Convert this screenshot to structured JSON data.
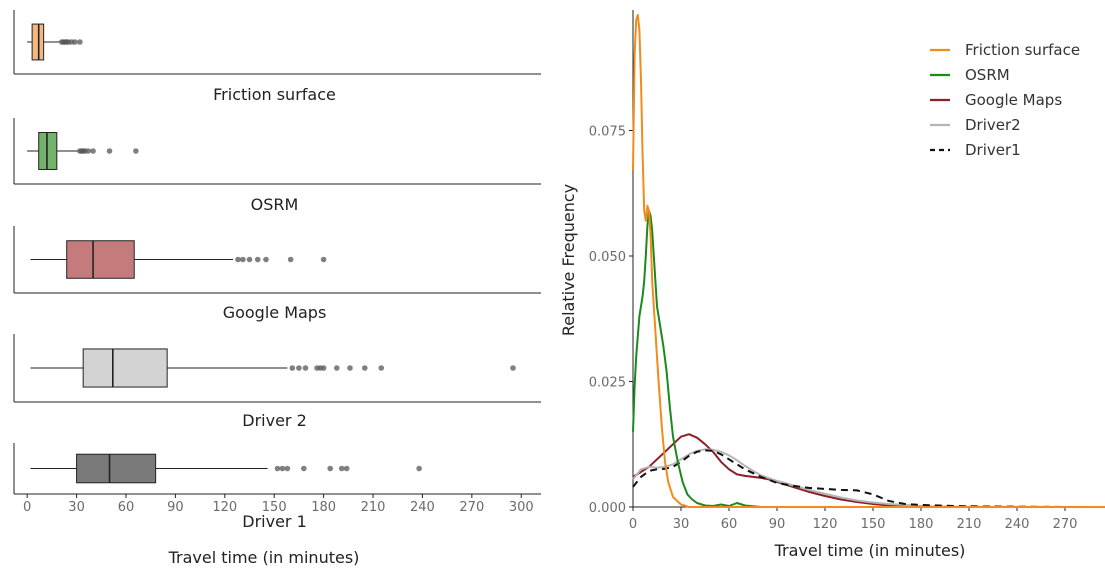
{
  "chart_data": [
    {
      "type": "boxplot",
      "xlabel": "Travel time (in minutes)",
      "xlim": [
        -8,
        312
      ],
      "x_ticks": [
        0,
        30,
        60,
        90,
        120,
        150,
        180,
        210,
        240,
        270,
        300
      ],
      "series": [
        {
          "name": "Friction surface",
          "color": "#f3b882",
          "whisker_low": 0,
          "q1": 3,
          "median": 7,
          "q3": 10,
          "whisker_high": 20,
          "outliers": [
            21,
            22,
            23,
            24,
            25,
            27,
            29,
            32
          ]
        },
        {
          "name": "OSRM",
          "color": "#73b36b",
          "whisker_low": 0,
          "q1": 7,
          "median": 12,
          "q3": 18,
          "whisker_high": 31,
          "outliers": [
            32,
            33,
            34,
            35,
            37,
            40,
            50,
            66
          ]
        },
        {
          "name": "Google Maps",
          "color": "#c57b7b",
          "whisker_low": 2,
          "q1": 24,
          "median": 40,
          "q3": 65,
          "whisker_high": 125,
          "outliers": [
            128,
            131,
            135,
            140,
            145,
            160,
            180
          ]
        },
        {
          "name": "Driver 2",
          "color": "#d3d3d3",
          "whisker_low": 2,
          "q1": 34,
          "median": 52,
          "q3": 85,
          "whisker_high": 158,
          "outliers": [
            161,
            165,
            169,
            176,
            178,
            180,
            188,
            196,
            205,
            215,
            295
          ]
        },
        {
          "name": "Driver 1",
          "color": "#7a7a7a",
          "whisker_low": 2,
          "q1": 30,
          "median": 50,
          "q3": 78,
          "whisker_high": 146,
          "outliers": [
            152,
            155,
            158,
            168,
            184,
            191,
            194,
            238
          ]
        }
      ]
    },
    {
      "type": "line",
      "xlabel": "Travel time (in minutes)",
      "ylabel": "Relative Frequency",
      "xlim": [
        0,
        295
      ],
      "ylim": [
        0,
        0.099
      ],
      "x_ticks": [
        0,
        30,
        60,
        90,
        120,
        150,
        180,
        210,
        240,
        270
      ],
      "y_ticks": [
        0.0,
        0.025,
        0.05,
        0.075
      ],
      "y_tick_labels": [
        "0.000",
        "0.025",
        "0.050",
        "0.075"
      ],
      "legend": "top-right",
      "series": [
        {
          "name": "Friction surface",
          "color": "#f28a1c",
          "dash": "solid",
          "x": [
            0,
            1,
            2,
            3,
            4,
            5,
            6,
            7,
            8,
            9,
            10,
            11,
            12,
            14,
            16,
            18,
            20,
            22,
            25,
            30,
            35,
            295
          ],
          "y": [
            0.067,
            0.09,
            0.097,
            0.098,
            0.095,
            0.085,
            0.07,
            0.059,
            0.057,
            0.06,
            0.059,
            0.054,
            0.045,
            0.035,
            0.025,
            0.016,
            0.009,
            0.005,
            0.002,
            0.0005,
            0.0,
            0.0
          ]
        },
        {
          "name": "OSRM",
          "color": "#1a8a1a",
          "dash": "solid",
          "x": [
            0,
            1,
            2,
            3,
            4,
            5,
            6,
            7,
            8,
            9,
            10,
            11,
            12,
            13,
            14,
            15,
            17,
            19,
            21,
            23,
            25,
            28,
            31,
            34,
            37,
            40,
            45,
            50,
            55,
            60,
            65,
            70,
            80,
            295
          ],
          "y": [
            0.015,
            0.024,
            0.03,
            0.034,
            0.038,
            0.04,
            0.042,
            0.045,
            0.05,
            0.056,
            0.059,
            0.058,
            0.055,
            0.05,
            0.045,
            0.04,
            0.036,
            0.032,
            0.027,
            0.02,
            0.014,
            0.009,
            0.005,
            0.0025,
            0.0015,
            0.0008,
            0.0003,
            0.0002,
            0.0005,
            0.0002,
            0.0008,
            0.0003,
            0.0,
            0.0
          ]
        },
        {
          "name": "Google Maps",
          "color": "#8a1f27",
          "dash": "solid",
          "x": [
            0,
            5,
            10,
            15,
            20,
            25,
            30,
            35,
            40,
            45,
            50,
            55,
            60,
            65,
            70,
            75,
            80,
            85,
            90,
            100,
            110,
            120,
            130,
            140,
            150,
            160,
            180,
            200,
            295
          ],
          "y": [
            0.006,
            0.007,
            0.008,
            0.0095,
            0.011,
            0.0125,
            0.014,
            0.0145,
            0.0138,
            0.0125,
            0.011,
            0.009,
            0.0075,
            0.0065,
            0.0062,
            0.006,
            0.0058,
            0.0055,
            0.005,
            0.004,
            0.003,
            0.0022,
            0.0015,
            0.001,
            0.0006,
            0.0003,
            0.0001,
            0.0,
            0.0
          ]
        },
        {
          "name": "Driver2",
          "color": "#b5b5b5",
          "dash": "solid",
          "x": [
            0,
            5,
            10,
            15,
            20,
            25,
            30,
            35,
            40,
            45,
            50,
            55,
            60,
            65,
            70,
            75,
            80,
            90,
            100,
            110,
            120,
            130,
            140,
            150,
            160,
            170,
            180,
            190,
            200,
            295
          ],
          "y": [
            0.0055,
            0.0075,
            0.008,
            0.0078,
            0.008,
            0.0085,
            0.0095,
            0.0105,
            0.0112,
            0.0115,
            0.0114,
            0.011,
            0.0103,
            0.0093,
            0.0082,
            0.0072,
            0.0063,
            0.0052,
            0.0043,
            0.0034,
            0.0026,
            0.0019,
            0.0013,
            0.0009,
            0.0006,
            0.0004,
            0.0002,
            0.0001,
            5e-05,
            0.0
          ]
        },
        {
          "name": "Driver1",
          "color": "#111111",
          "dash": "dashed",
          "x": [
            0,
            5,
            10,
            15,
            20,
            25,
            30,
            35,
            40,
            45,
            50,
            55,
            60,
            65,
            70,
            80,
            90,
            100,
            110,
            120,
            130,
            140,
            150,
            160,
            170,
            180,
            200,
            220,
            240,
            270,
            295
          ],
          "y": [
            0.004,
            0.006,
            0.0072,
            0.0075,
            0.0076,
            0.008,
            0.009,
            0.0102,
            0.011,
            0.0113,
            0.0112,
            0.0105,
            0.0095,
            0.0085,
            0.0075,
            0.006,
            0.0048,
            0.0042,
            0.0038,
            0.0036,
            0.0034,
            0.0033,
            0.0025,
            0.0012,
            0.0006,
            0.0004,
            0.0002,
            0.0001,
            5e-05,
            0.0,
            0.0
          ]
        }
      ]
    }
  ]
}
